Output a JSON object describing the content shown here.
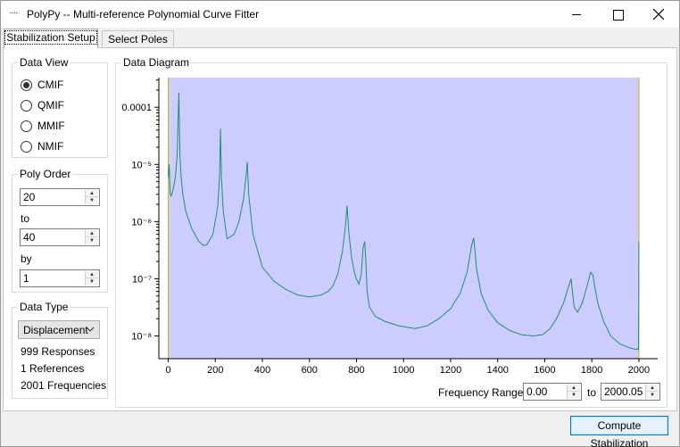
{
  "window": {
    "title": "PolyPy -- Multi-reference Polynomial Curve Fitter",
    "icon": "app-icon"
  },
  "tabs": [
    {
      "label": "Stabilization Setup",
      "active": true
    },
    {
      "label": "Select Poles",
      "active": false
    }
  ],
  "data_view": {
    "title": "Data View",
    "options": [
      {
        "label": "CMIF",
        "checked": true
      },
      {
        "label": "QMIF",
        "checked": false
      },
      {
        "label": "MMIF",
        "checked": false
      },
      {
        "label": "NMIF",
        "checked": false
      }
    ]
  },
  "poly_order": {
    "title": "Poly Order",
    "from_value": "20",
    "to_label": "to",
    "to_value": "40",
    "by_label": "by",
    "by_value": "1"
  },
  "data_type": {
    "title": "Data Type",
    "selected": "Displacement",
    "responses": "999 Responses",
    "references": "1 References",
    "frequencies": "2001 Frequencies"
  },
  "diagram": {
    "title": "Data Diagram",
    "frequency_range_label": "Frequency Range:",
    "range_from": "0.00",
    "range_to_label": "to",
    "range_to": "2000.05"
  },
  "compute_button": "Compute Stabilization",
  "colors": {
    "plot_background": "#ccccff",
    "line": "#1f8f6f",
    "accent_button_border": "#0078d7"
  },
  "chart_data": {
    "type": "line",
    "title": "",
    "xlabel": "",
    "ylabel": "",
    "yscale": "log",
    "xlim": [
      -40,
      2080
    ],
    "ylim": [
      4e-09,
      0.00033
    ],
    "x_ticks": [
      0,
      200,
      400,
      600,
      800,
      1000,
      1200,
      1400,
      1600,
      1800,
      2000
    ],
    "y_ticks": [
      {
        "value": 0.0001,
        "label": "0.0001"
      },
      {
        "value": 1e-05,
        "label": "10⁻⁵"
      },
      {
        "value": 1e-06,
        "label": "10⁻⁶"
      },
      {
        "value": 1e-07,
        "label": "10⁻⁷"
      },
      {
        "value": 1e-08,
        "label": "10⁻⁸"
      }
    ],
    "shaded_range": [
      0,
      2000
    ],
    "series": [
      {
        "x": [
          0,
          4,
          8,
          12,
          20,
          30,
          38,
          45,
          50,
          55,
          62,
          75,
          100,
          130,
          150,
          165,
          190,
          210,
          218,
          222,
          226,
          234,
          250,
          280,
          300,
          320,
          330,
          336,
          342,
          360,
          400,
          450,
          500,
          550,
          600,
          650,
          680,
          700,
          720,
          740,
          752,
          760,
          768,
          780,
          795,
          810,
          820,
          828,
          835,
          840,
          845,
          855,
          880,
          920,
          980,
          1050,
          1100,
          1150,
          1200,
          1240,
          1270,
          1290,
          1298,
          1302,
          1310,
          1330,
          1360,
          1400,
          1450,
          1500,
          1550,
          1590,
          1620,
          1650,
          1680,
          1700,
          1712,
          1718,
          1725,
          1740,
          1760,
          1780,
          1795,
          1805,
          1812,
          1825,
          1850,
          1880,
          1920,
          1960,
          1990,
          1996,
          1999,
          2000
        ],
        "y": [
          6e-06,
          1e-05,
          3e-06,
          2.8e-06,
          3.5e-06,
          6e-06,
          1.5e-05,
          0.00018,
          1.4e-05,
          6e-06,
          3e-06,
          1.5e-06,
          7.5e-07,
          4.5e-07,
          3.8e-07,
          4e-07,
          6e-07,
          1.8e-06,
          6e-06,
          4.2e-05,
          6e-06,
          1.5e-06,
          5e-07,
          6e-07,
          1e-06,
          2.5e-06,
          6e-06,
          1.1e-05,
          3e-06,
          6e-07,
          1.6e-07,
          9e-08,
          6.5e-08,
          5.2e-08,
          4.8e-08,
          5.2e-08,
          6e-08,
          7.5e-08,
          1.2e-07,
          3e-07,
          7.5e-07,
          1.9e-06,
          6e-07,
          2.2e-07,
          1.1e-07,
          8e-08,
          1.2e-07,
          3.5e-07,
          4.5e-07,
          2e-07,
          6e-08,
          3.2e-08,
          2.2e-08,
          1.8e-08,
          1.5e-08,
          1.35e-08,
          1.5e-08,
          2e-08,
          3e-08,
          5.5e-08,
          1.3e-07,
          4e-07,
          5.2e-07,
          3.5e-07,
          1.5e-07,
          5.5e-08,
          2.8e-08,
          1.7e-08,
          1.25e-08,
          1.05e-08,
          1e-08,
          1.05e-08,
          1.3e-08,
          2e-08,
          3.8e-08,
          7e-08,
          1e-07,
          6e-08,
          3.2e-08,
          2.6e-08,
          3.8e-08,
          7.5e-08,
          1.3e-07,
          1.15e-07,
          7.5e-08,
          3.8e-08,
          1.8e-08,
          1e-08,
          7.2e-09,
          6.2e-09,
          5.8e-09,
          6e-09,
          5.8e-09,
          4.5e-07
        ]
      }
    ]
  }
}
